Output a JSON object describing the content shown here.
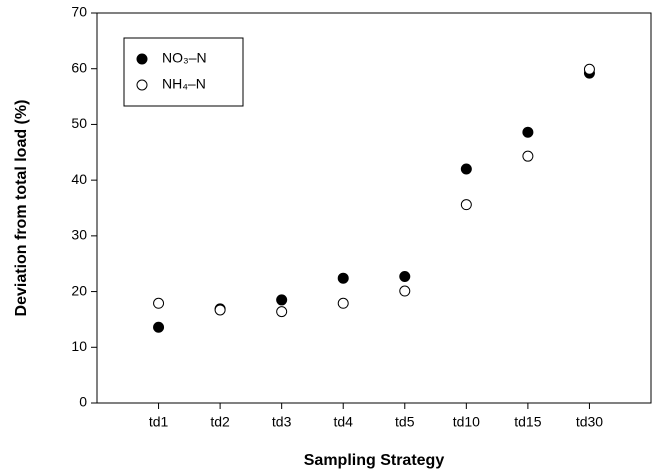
{
  "chart_data": {
    "type": "scatter",
    "xlabel": "Sampling Strategy",
    "ylabel": "Deviation from total load (%)",
    "categories": [
      "td1",
      "td2",
      "td3",
      "td4",
      "td5",
      "td10",
      "td15",
      "td30"
    ],
    "series": [
      {
        "name": "NO₃–N",
        "color": "#000000",
        "fill": "#000000",
        "values": [
          13.6,
          16.9,
          18.5,
          22.4,
          22.7,
          42.0,
          48.6,
          59.2
        ]
      },
      {
        "name": "NH₄–N",
        "color": "#000000",
        "fill": "#ffffff",
        "values": [
          17.9,
          16.7,
          16.4,
          17.9,
          20.1,
          35.6,
          44.3,
          59.9
        ]
      }
    ],
    "ylim": [
      0,
      70
    ],
    "yticks": [
      0,
      10,
      20,
      30,
      40,
      50,
      60,
      70
    ],
    "grid": false,
    "legend": "upper left"
  }
}
